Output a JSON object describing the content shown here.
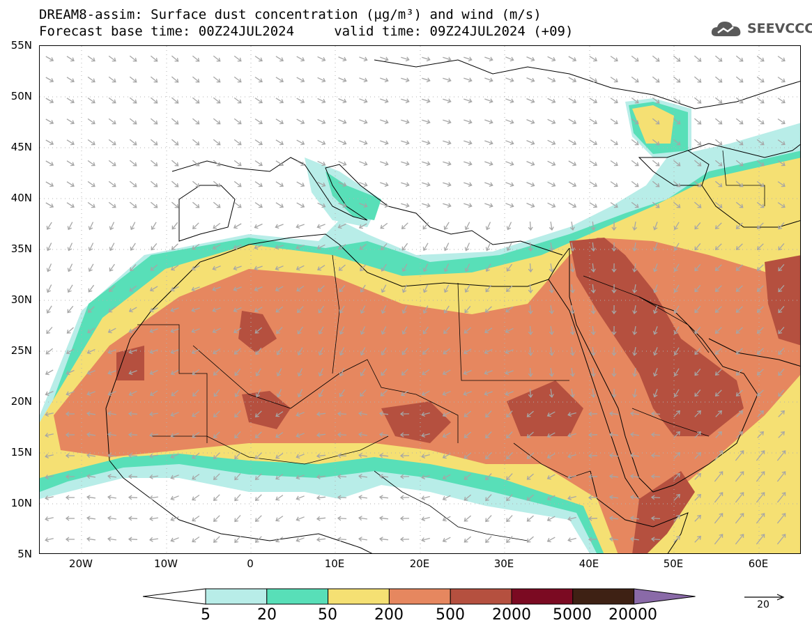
{
  "header": {
    "title_line1": "DREAM8-assim: Surface dust concentration (µg/m³) and wind (m/s)",
    "title_line2": "Forecast base time: 00Z24JUL2024     valid time: 09Z24JUL2024 (+09)",
    "logo_text": "SEEVCCC"
  },
  "map": {
    "lon_range": [
      -25,
      65
    ],
    "lat_range": [
      5,
      55
    ],
    "lat_labels": [
      "55N",
      "50N",
      "45N",
      "40N",
      "35N",
      "30N",
      "25N",
      "20N",
      "15N",
      "10N",
      "5N"
    ],
    "lon_labels": [
      "20W",
      "10W",
      "0",
      "10E",
      "20E",
      "30E",
      "40E",
      "50E",
      "60E"
    ],
    "wind_arrow_color": "#a6a6a6",
    "coastline_color": "#000000"
  },
  "colorbar": {
    "labels": [
      "5",
      "20",
      "50",
      "200",
      "500",
      "2000",
      "5000",
      "20000"
    ],
    "colors": [
      "#ffffff",
      "#b8ede8",
      "#58dfb8",
      "#f5e073",
      "#e6875f",
      "#b5503f",
      "#7b0a22",
      "#3e2114",
      "#8a6aa8"
    ]
  },
  "wind_reference": {
    "label": "20"
  }
}
